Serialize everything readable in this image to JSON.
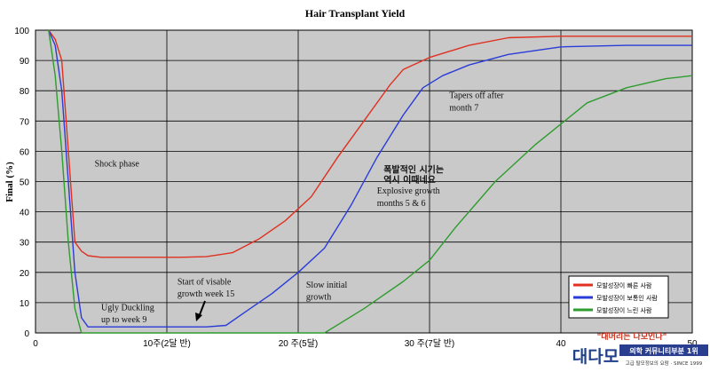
{
  "chart_data": {
    "type": "line",
    "title": "Hair Transplant Yield",
    "ylabel": "Final (%)",
    "xlabel": "",
    "xlim": [
      0,
      50
    ],
    "ylim": [
      0,
      100
    ],
    "grid": true,
    "legend_position": "right",
    "x_ticks": [
      {
        "x": 0,
        "label": "0"
      },
      {
        "x": 10,
        "label": "10주(2달 반)"
      },
      {
        "x": 20,
        "label": "20 주(5달)"
      },
      {
        "x": 30,
        "label": "30 주(7달 반)"
      },
      {
        "x": 40,
        "label": "40"
      },
      {
        "x": 50,
        "label": "50"
      }
    ],
    "y_ticks": [
      0,
      10,
      20,
      30,
      40,
      50,
      60,
      70,
      80,
      90,
      100
    ],
    "series": [
      {
        "name": "모발성장이 빠른 사람",
        "color": "#e03020",
        "points": [
          [
            1,
            100
          ],
          [
            1.5,
            97
          ],
          [
            2,
            90
          ],
          [
            3,
            30
          ],
          [
            3.5,
            27
          ],
          [
            4,
            25.5
          ],
          [
            5,
            25
          ],
          [
            7,
            25
          ],
          [
            9,
            25
          ],
          [
            11,
            25
          ],
          [
            13,
            25.2
          ],
          [
            15,
            26.5
          ],
          [
            17,
            31
          ],
          [
            19,
            37
          ],
          [
            21,
            45
          ],
          [
            23,
            58
          ],
          [
            25,
            70
          ],
          [
            27,
            82
          ],
          [
            28,
            87
          ],
          [
            30,
            91
          ],
          [
            33,
            95
          ],
          [
            36,
            97.5
          ],
          [
            40,
            98
          ],
          [
            45,
            98
          ],
          [
            50,
            98
          ]
        ]
      },
      {
        "name": "모발성장이 보통인 사람",
        "color": "#2a3cd8",
        "points": [
          [
            1,
            100
          ],
          [
            1.5,
            95
          ],
          [
            2,
            80
          ],
          [
            2.5,
            50
          ],
          [
            3,
            20
          ],
          [
            3.5,
            5
          ],
          [
            4,
            2
          ],
          [
            5,
            2
          ],
          [
            7,
            2
          ],
          [
            9,
            2
          ],
          [
            11,
            2
          ],
          [
            13,
            2
          ],
          [
            14.5,
            2.5
          ],
          [
            16,
            7
          ],
          [
            18,
            13
          ],
          [
            20,
            20
          ],
          [
            22,
            28
          ],
          [
            24,
            42
          ],
          [
            26,
            58
          ],
          [
            28,
            72
          ],
          [
            29.5,
            81
          ],
          [
            31,
            85
          ],
          [
            33,
            88.5
          ],
          [
            36,
            92
          ],
          [
            40,
            94.5
          ],
          [
            45,
            95
          ],
          [
            50,
            95
          ]
        ]
      },
      {
        "name": "모발성장이 느린 사람",
        "color": "#2e9c2e",
        "points": [
          [
            1,
            100
          ],
          [
            1.5,
            85
          ],
          [
            2,
            60
          ],
          [
            2.5,
            30
          ],
          [
            3,
            8
          ],
          [
            3.5,
            0
          ],
          [
            10,
            0
          ],
          [
            18,
            0
          ],
          [
            22,
            0
          ],
          [
            25,
            8
          ],
          [
            28,
            17
          ],
          [
            30,
            24
          ],
          [
            32,
            35
          ],
          [
            35,
            50
          ],
          [
            38,
            62
          ],
          [
            40,
            69
          ],
          [
            42,
            76
          ],
          [
            45,
            81
          ],
          [
            48,
            84
          ],
          [
            50,
            85
          ]
        ]
      }
    ],
    "annotations": [
      {
        "key": "shock",
        "text": "Shock phase",
        "x": 4.5,
        "y": 55
      },
      {
        "key": "ugly1",
        "text": "Ugly Duckling",
        "x": 5,
        "y": 7.5
      },
      {
        "key": "ugly2",
        "text": "up to week 9",
        "x": 5,
        "y": 3.5
      },
      {
        "key": "start1",
        "text": "Start of visable",
        "x": 10.8,
        "y": 16
      },
      {
        "key": "start2",
        "text": "growth week 15",
        "x": 10.8,
        "y": 12
      },
      {
        "key": "slow1",
        "text": "Slow initial",
        "x": 20.6,
        "y": 15
      },
      {
        "key": "slow2",
        "text": "growth",
        "x": 20.6,
        "y": 11
      },
      {
        "key": "kr1",
        "text": "폭발적인 시기는",
        "x": 26.5,
        "y": 53
      },
      {
        "key": "kr2",
        "text": "역시 이때네요",
        "x": 26.5,
        "y": 49.5
      },
      {
        "key": "exp1",
        "text": "Explosive growth",
        "x": 26,
        "y": 46
      },
      {
        "key": "exp2",
        "text": "months 5 & 6",
        "x": 26,
        "y": 42
      },
      {
        "key": "taper1",
        "text": "Tapers off after",
        "x": 31.5,
        "y": 77.5
      },
      {
        "key": "taper2",
        "text": "month 7",
        "x": 31.5,
        "y": 73.5
      }
    ]
  },
  "watermark": {
    "slogan": "\"대머리는 다모인다\"",
    "logo": "대다모",
    "line1": "의학 커뮤니티부분 1위",
    "line2": "고급 탈모정보의 요람 · SINCE 1999"
  }
}
